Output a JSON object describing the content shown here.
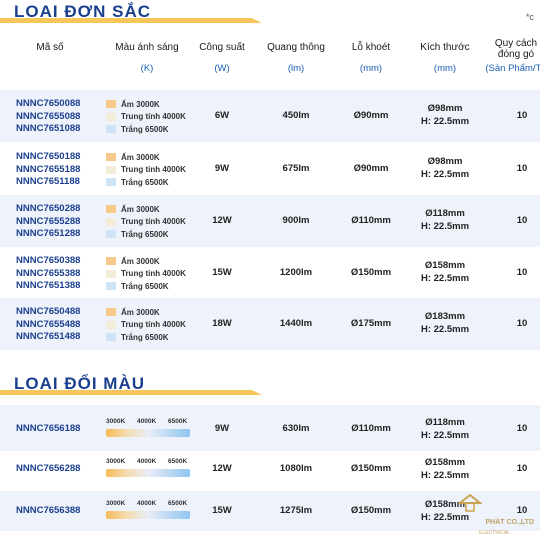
{
  "top_mark": "*c",
  "section1": {
    "title": "LOẠI ĐƠN SẮC"
  },
  "section2": {
    "title": "LOẠI ĐỔI MÀU"
  },
  "headers": [
    {
      "label": "Mã số",
      "unit": ""
    },
    {
      "label": "Màu ánh sáng",
      "unit": "(K)"
    },
    {
      "label": "Công suất",
      "unit": "(W)"
    },
    {
      "label": "Quang thông",
      "unit": "(lm)"
    },
    {
      "label": "Lỗ khoét",
      "unit": "(mm)"
    },
    {
      "label": "Kích thước",
      "unit": "(mm)"
    },
    {
      "label": "Quy cách",
      "label2": "đóng gó",
      "unit": "(Sản Phẩm/Th"
    }
  ],
  "swatches": [
    {
      "label": "Ấm 3000K",
      "color": "#f7c98a"
    },
    {
      "label": "Trung tính 4000K",
      "color": "#f3ecd9"
    },
    {
      "label": "Trắng 6500K",
      "color": "#cfe3f6"
    }
  ],
  "gradient_labels": [
    "3000K",
    "4000K",
    "6500K"
  ],
  "mono_rows": [
    {
      "codes": [
        "NNNC7650088",
        "NNNC7655088",
        "NNNC7651088"
      ],
      "power": "6W",
      "flux": "450lm",
      "cutout": "Ø90mm",
      "size1": "Ø98mm",
      "size2": "H: 22.5mm",
      "pack": "10"
    },
    {
      "codes": [
        "NNNC7650188",
        "NNNC7655188",
        "NNNC7651188"
      ],
      "power": "9W",
      "flux": "675lm",
      "cutout": "Ø90mm",
      "size1": "Ø98mm",
      "size2": "H: 22.5mm",
      "pack": "10"
    },
    {
      "codes": [
        "NNNC7650288",
        "NNNC7655288",
        "NNNC7651288"
      ],
      "power": "12W",
      "flux": "900lm",
      "cutout": "Ø110mm",
      "size1": "Ø118mm",
      "size2": "H: 22.5mm",
      "pack": "10"
    },
    {
      "codes": [
        "NNNC7650388",
        "NNNC7655388",
        "NNNC7651388"
      ],
      "power": "15W",
      "flux": "1200lm",
      "cutout": "Ø150mm",
      "size1": "Ø158mm",
      "size2": "H: 22.5mm",
      "pack": "10"
    },
    {
      "codes": [
        "NNNC7650488",
        "NNNC7655488",
        "NNNC7651488"
      ],
      "power": "18W",
      "flux": "1440lm",
      "cutout": "Ø175mm",
      "size1": "Ø183mm",
      "size2": "H: 22.5mm",
      "pack": "10"
    }
  ],
  "cct_rows": [
    {
      "code": "NNNC7656188",
      "power": "9W",
      "flux": "630lm",
      "cutout": "Ø110mm",
      "size1": "Ø118mm",
      "size2": "H: 22.5mm",
      "pack": "10"
    },
    {
      "code": "NNNC7656288",
      "power": "12W",
      "flux": "1080lm",
      "cutout": "Ø150mm",
      "size1": "Ø158mm",
      "size2": "H: 22.5mm",
      "pack": "10"
    },
    {
      "code": "NNNC7656388",
      "power": "15W",
      "flux": "1275lm",
      "cutout": "Ø150mm",
      "size1": "Ø158mm",
      "size2": "H: 22.5mm",
      "pack": "10"
    }
  ],
  "watermark": {
    "line1": "PHÁT CO.,LTD",
    "line2": "ELECTRICAL"
  }
}
